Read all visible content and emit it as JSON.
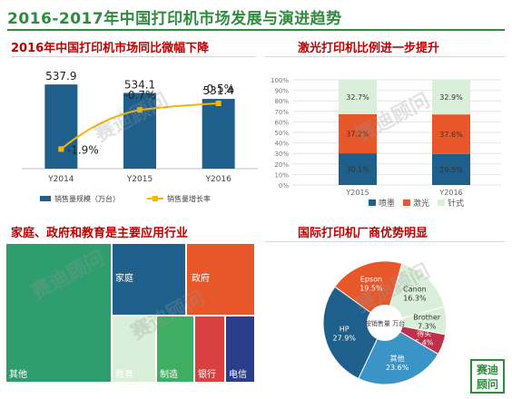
{
  "header": {
    "title": "2016-2017年中国打印机市场发展与演进趋势"
  },
  "panels": {
    "market": {
      "title": "2016年中国打印机市场同比微幅下降"
    },
    "laser": {
      "title": "激光打印机比例进一步提升"
    },
    "industry": {
      "title": "家庭、政府和教育是主要应用行业"
    },
    "vendors": {
      "title": "国际打印机厂商优势明显"
    }
  },
  "watermark": "赛迪顾问",
  "seal_text": "赛迪顾问",
  "chart_data": [
    {
      "type": "bar",
      "categories": [
        "Y2014",
        "Y2015",
        "Y2016"
      ],
      "series": [
        {
          "name": "销售量规模（万台）",
          "values": [
            537.9,
            534.1,
            531.4
          ],
          "color": "#1f5f8b"
        },
        {
          "name": "销售量增长率",
          "type": "line",
          "values": [
            -1.9,
            -0.7,
            -0.5
          ],
          "value_labels": [
            "-1.9%",
            "-0.7%",
            "-0.5%"
          ],
          "color": "#f5b800"
        }
      ],
      "value_labels": [
        "537.9",
        "534.1",
        "531.4"
      ],
      "ylim": [
        500,
        540
      ],
      "growth_ylim": [
        -2.5,
        0
      ]
    },
    {
      "type": "bar",
      "stacked": true,
      "percent": true,
      "categories": [
        "Y2015",
        "Y2016"
      ],
      "series": [
        {
          "name": "喷墨",
          "values": [
            30.1,
            29.5
          ],
          "labels": [
            "30.1%",
            "29.5%"
          ],
          "color": "#1f5f8b"
        },
        {
          "name": "激光",
          "values": [
            37.2,
            37.6
          ],
          "labels": [
            "37.2%",
            "37.6%"
          ],
          "color": "#e8572a"
        },
        {
          "name": "针式",
          "values": [
            32.7,
            32.9
          ],
          "labels": [
            "32.7%",
            "32.9%"
          ],
          "color": "#d9efd9"
        }
      ],
      "ylim": [
        0,
        100
      ],
      "yticks": [
        "0%",
        "10%",
        "20%",
        "30%",
        "40%",
        "50%",
        "60%",
        "70%",
        "80%",
        "90%",
        "100%"
      ],
      "legend": "bottom"
    },
    {
      "type": "treemap",
      "items": [
        {
          "name": "其他",
          "color": "#2f9e6f"
        },
        {
          "name": "家庭",
          "color": "#1f5f8b"
        },
        {
          "name": "政府",
          "color": "#e8572a"
        },
        {
          "name": "教育",
          "color": "#d9efd9"
        },
        {
          "name": "制造",
          "color": "#3fae62"
        },
        {
          "name": "银行",
          "color": "#d94040"
        },
        {
          "name": "电信",
          "color": "#2b3e8c"
        }
      ]
    },
    {
      "type": "pie",
      "center_label": "按销售量 万台",
      "slices": [
        {
          "name": "Canon",
          "value": 16.3,
          "label": "16.3%",
          "color": "#d9efd9"
        },
        {
          "name": "Brother",
          "value": 7.3,
          "label": "7.3%",
          "color": "#d9efd9"
        },
        {
          "name": "得实",
          "value": 5.4,
          "label": "5.4%",
          "color": "#c0304a"
        },
        {
          "name": "其他",
          "value": 23.6,
          "label": "23.6%",
          "color": "#3a95c6"
        },
        {
          "name": "HP",
          "value": 27.9,
          "label": "27.9%",
          "color": "#1f5f8b"
        },
        {
          "name": "Epson",
          "value": 19.5,
          "label": "19.5%",
          "color": "#e8572a"
        }
      ]
    }
  ]
}
